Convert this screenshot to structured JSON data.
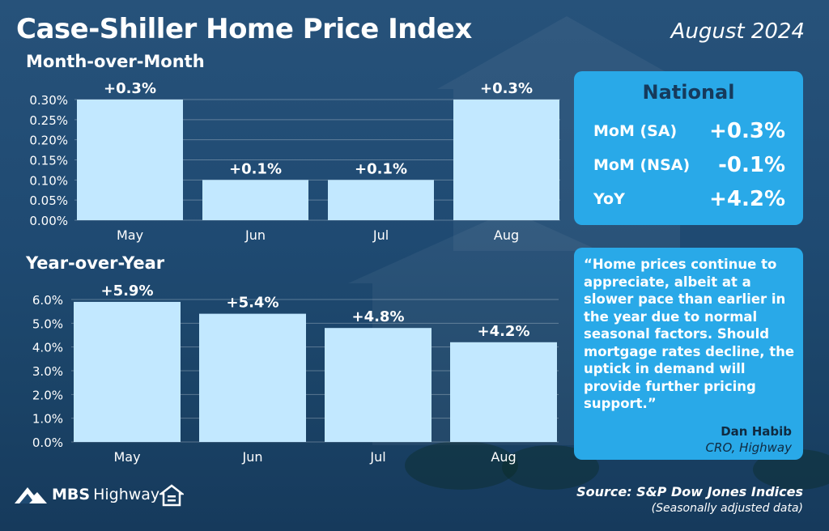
{
  "header": {
    "title": "Case-Shiller Home Price Index",
    "date": "August 2024"
  },
  "chart_data": [
    {
      "type": "bar",
      "title": "Month-over-Month",
      "categories": [
        "May",
        "Jun",
        "Jul",
        "Aug"
      ],
      "values": [
        0.3,
        0.1,
        0.1,
        0.3
      ],
      "data_labels": [
        "+0.3%",
        "+0.1%",
        "+0.1%",
        "+0.3%"
      ],
      "yticks": [
        "0.00%",
        "0.05%",
        "0.10%",
        "0.15%",
        "0.20%",
        "0.25%",
        "0.30%"
      ],
      "ytick_values": [
        0,
        0.05,
        0.1,
        0.15,
        0.2,
        0.25,
        0.3
      ],
      "ylim": [
        0,
        0.3
      ],
      "grid": true,
      "bar_color": "#c2e8ff"
    },
    {
      "type": "bar",
      "title": "Year-over-Year",
      "categories": [
        "May",
        "Jun",
        "Jul",
        "Aug"
      ],
      "values": [
        5.9,
        5.4,
        4.8,
        4.2
      ],
      "data_labels": [
        "+5.9%",
        "+5.4%",
        "+4.8%",
        "+4.2%"
      ],
      "yticks": [
        "0.0%",
        "1.0%",
        "2.0%",
        "3.0%",
        "4.0%",
        "5.0%",
        "6.0%"
      ],
      "ytick_values": [
        0,
        1,
        2,
        3,
        4,
        5,
        6
      ],
      "ylim": [
        0,
        6
      ],
      "grid": true,
      "bar_color": "#c2e8ff"
    }
  ],
  "national": {
    "heading": "National",
    "rows": [
      {
        "label": "MoM (SA)",
        "value": "+0.3%"
      },
      {
        "label": "MoM (NSA)",
        "value": "-0.1%"
      },
      {
        "label": "YoY",
        "value": "+4.2%"
      }
    ]
  },
  "quote": {
    "text": "“Home prices continue to appreciate, albeit at a slower pace than earlier in the year due to normal seasonal factors. Should mortgage rates decline, the uptick in demand will provide further pricing support.”",
    "author": "Dan Habib",
    "role": "CRO, Highway"
  },
  "footer": {
    "logo_mbs": "MBS",
    "logo_highway": "Highway",
    "source": "Source: S&P Dow Jones Indices",
    "note": "(Seasonally adjusted data)"
  },
  "colors": {
    "background": "#1f4a72",
    "panel": "#29a9e8",
    "bar": "#c2e8ff"
  },
  "icons": {
    "logo": "mbs-highway-logo-icon",
    "housing": "equal-housing-opportunity-icon"
  }
}
